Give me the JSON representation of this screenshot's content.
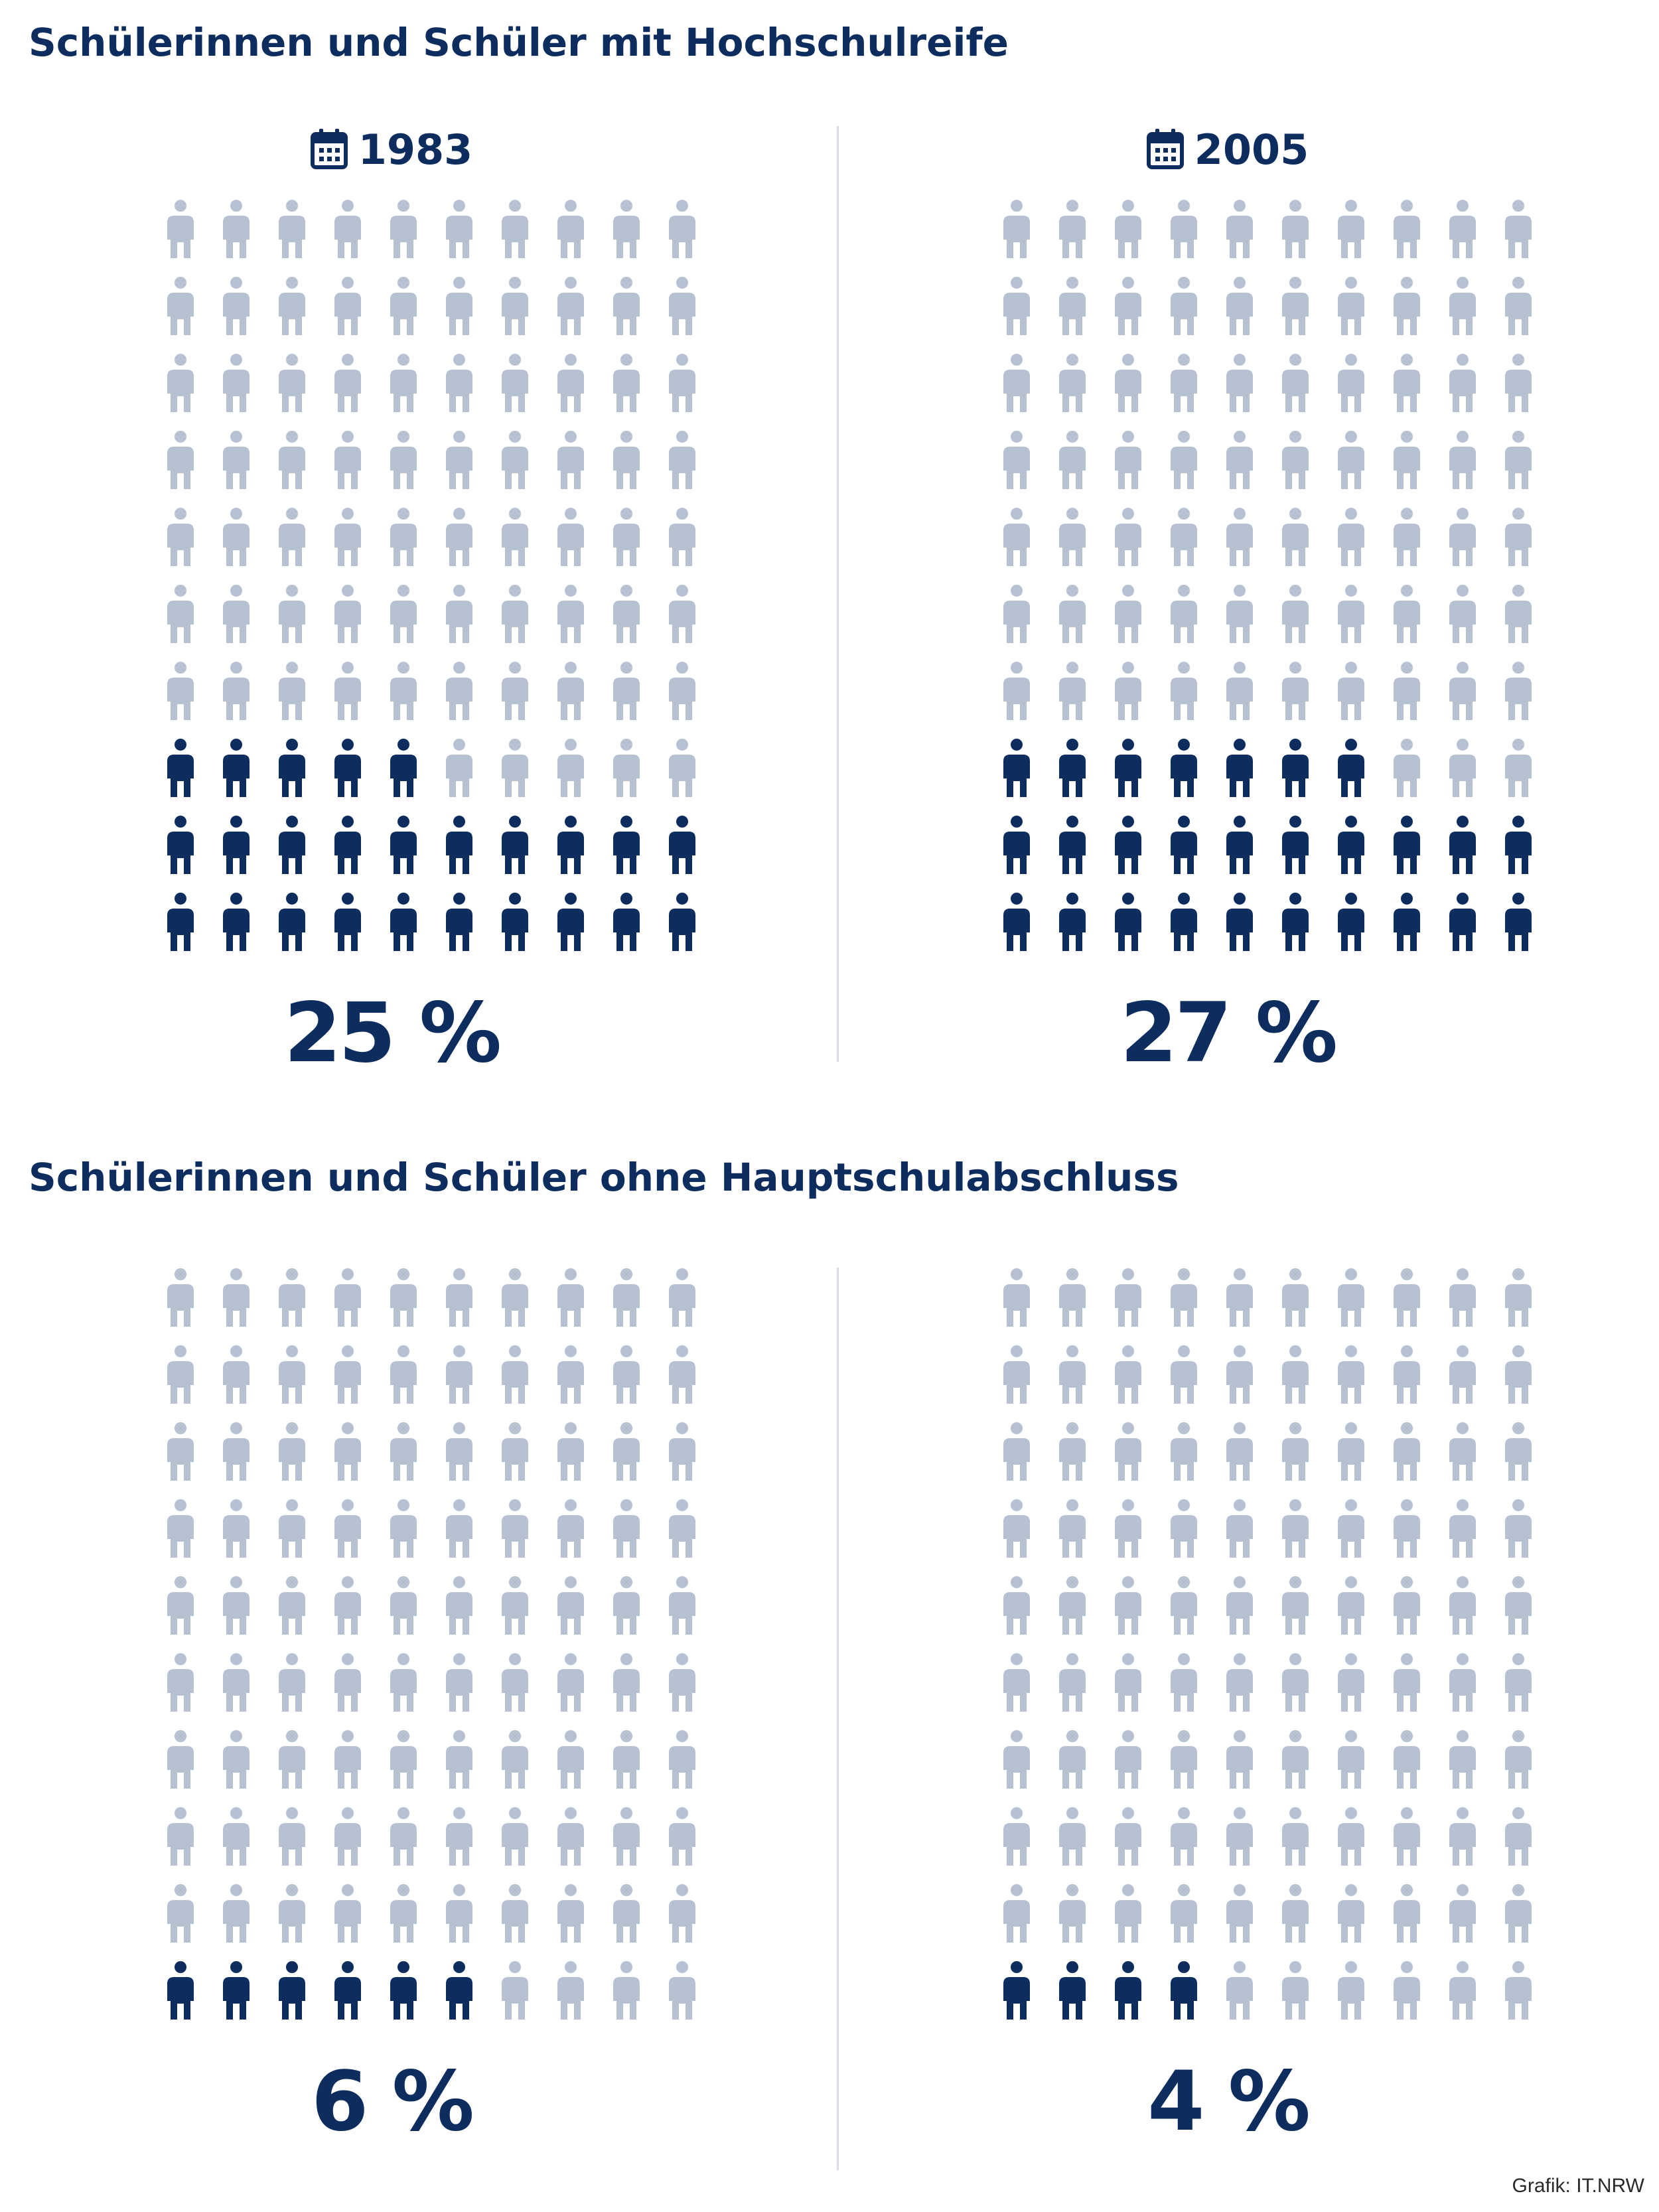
{
  "sections": [
    {
      "title": "Schülerinnen und Schüler mit Hochschulreife"
    },
    {
      "title": "Schülerinnen und Schüler ohne Hauptschulabschluss"
    }
  ],
  "colors": {
    "filled": "#0c2d5e",
    "empty": "#b6c2d2",
    "text": "#0c2d5e",
    "divider": "#d9dde3"
  },
  "icons": {
    "person": "person-icon",
    "calendar": "calendar-icon"
  },
  "chart_data": [
    {
      "type": "pictogram",
      "section": 0,
      "label": "1983",
      "value": 25,
      "value_label": "25 %",
      "total": 100,
      "columns": 10,
      "rows": 10
    },
    {
      "type": "pictogram",
      "section": 0,
      "label": "2005",
      "value": 27,
      "value_label": "27 %",
      "total": 100,
      "columns": 10,
      "rows": 10
    },
    {
      "type": "pictogram",
      "section": 1,
      "label": "",
      "value": 6,
      "value_label": "6 %",
      "total": 100,
      "columns": 10,
      "rows": 10
    },
    {
      "type": "pictogram",
      "section": 1,
      "label": "",
      "value": 4,
      "value_label": "4 %",
      "total": 100,
      "columns": 10,
      "rows": 10
    }
  ],
  "source": "Grafik: IT.NRW"
}
